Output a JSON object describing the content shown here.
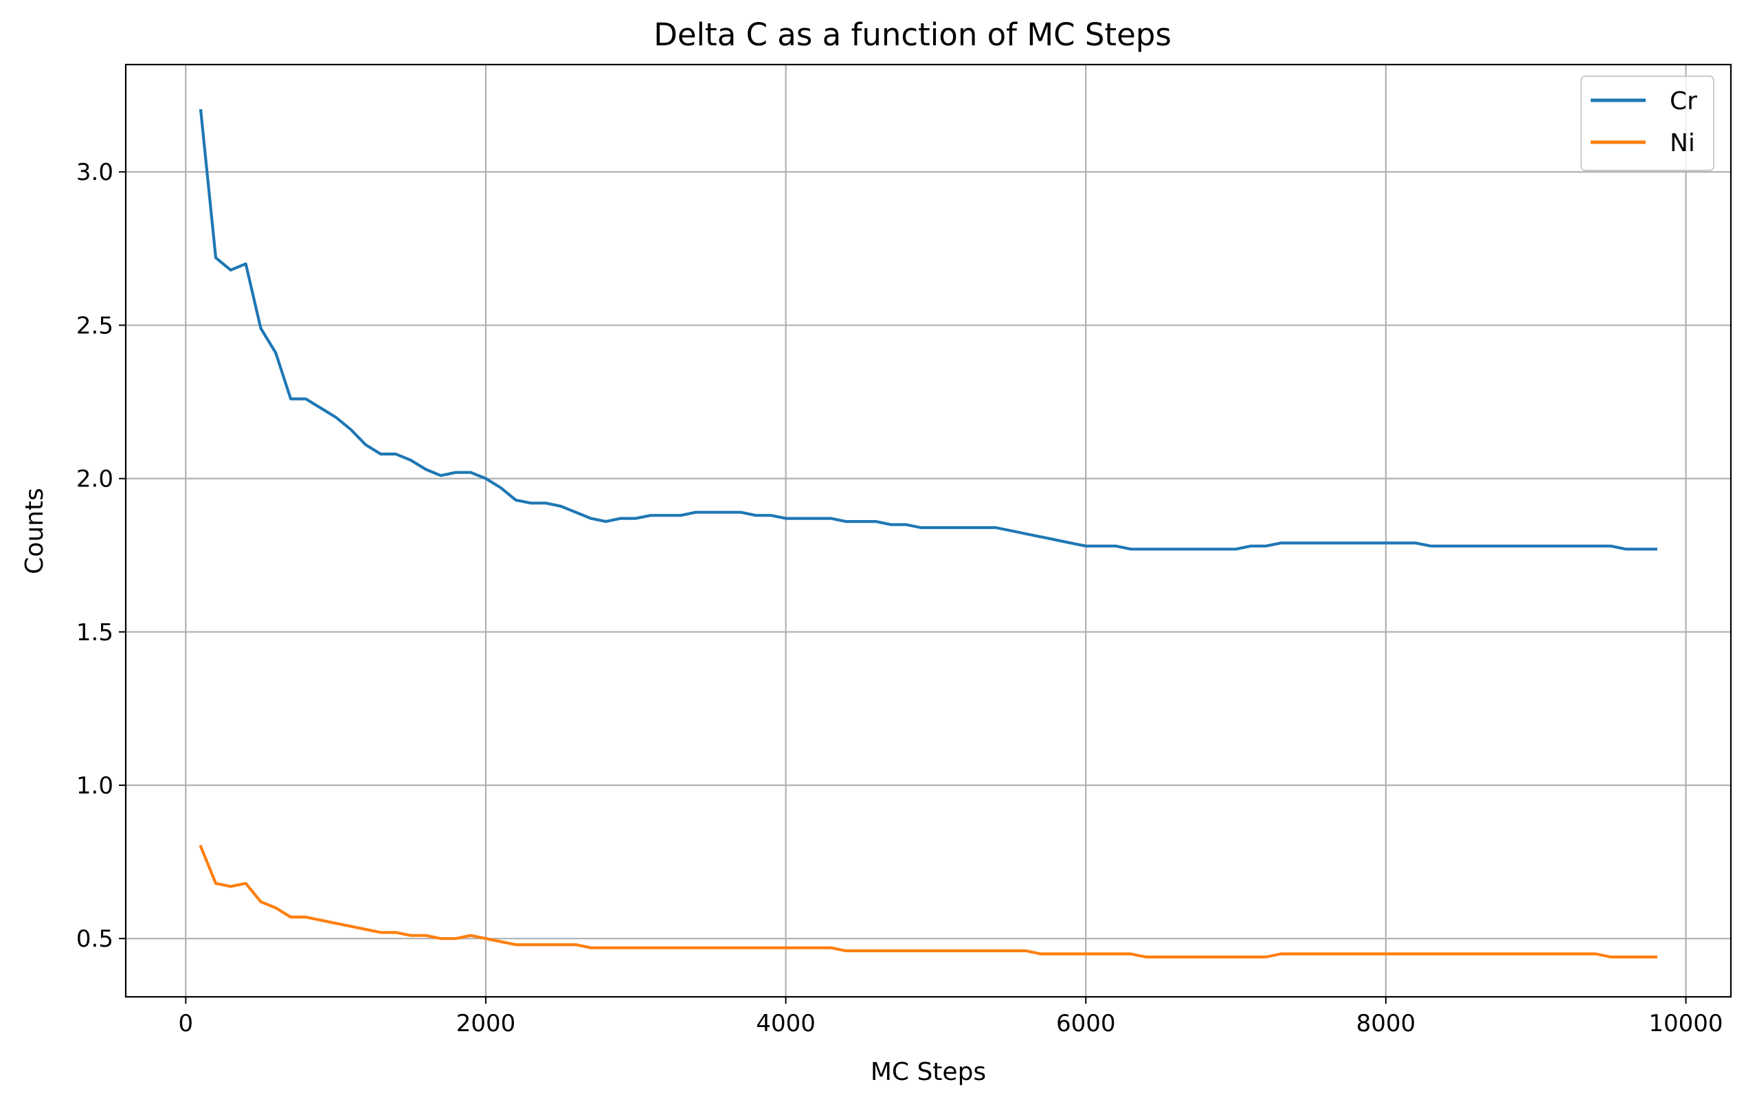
{
  "chart_data": {
    "type": "line",
    "title": "Delta C as a function of MC Steps",
    "xlabel": "MC Steps",
    "ylabel": "Counts",
    "xlim": [
      -400,
      10300
    ],
    "ylim": [
      0.31,
      3.35
    ],
    "xticks": [
      0,
      2000,
      4000,
      6000,
      8000,
      10000
    ],
    "yticks": [
      0.5,
      1.0,
      1.5,
      2.0,
      2.5,
      3.0
    ],
    "xtick_labels": [
      "0",
      "2000",
      "4000",
      "6000",
      "8000",
      "10000"
    ],
    "ytick_labels": [
      "0.5",
      "1.0",
      "1.5",
      "2.0",
      "2.5",
      "3.0"
    ],
    "grid": true,
    "legend_position": "top-right",
    "x": [
      100,
      200,
      300,
      400,
      500,
      600,
      700,
      800,
      900,
      1000,
      1100,
      1200,
      1300,
      1400,
      1500,
      1600,
      1700,
      1800,
      1900,
      2000,
      2100,
      2200,
      2300,
      2400,
      2500,
      2600,
      2700,
      2800,
      2900,
      3000,
      3100,
      3200,
      3300,
      3400,
      3500,
      3600,
      3700,
      3800,
      3900,
      4000,
      4100,
      4200,
      4300,
      4400,
      4500,
      4600,
      4700,
      4800,
      4900,
      5000,
      5100,
      5200,
      5300,
      5400,
      5500,
      5600,
      5700,
      5800,
      5900,
      6000,
      6100,
      6200,
      6300,
      6400,
      6500,
      6600,
      6700,
      6800,
      6900,
      7000,
      7100,
      7200,
      7300,
      7400,
      7500,
      7600,
      7700,
      7800,
      7900,
      8000,
      8100,
      8200,
      8300,
      8400,
      8500,
      8600,
      8700,
      8800,
      8900,
      9000,
      9100,
      9200,
      9300,
      9400,
      9500,
      9600,
      9700,
      9800
    ],
    "series": [
      {
        "name": "Cr",
        "color": "#1f77b4",
        "values": [
          3.2,
          2.72,
          2.68,
          2.7,
          2.49,
          2.41,
          2.26,
          2.26,
          2.23,
          2.2,
          2.16,
          2.11,
          2.08,
          2.08,
          2.06,
          2.03,
          2.01,
          2.02,
          2.02,
          2.0,
          1.97,
          1.93,
          1.92,
          1.92,
          1.91,
          1.89,
          1.87,
          1.86,
          1.87,
          1.87,
          1.88,
          1.88,
          1.88,
          1.89,
          1.89,
          1.89,
          1.89,
          1.88,
          1.88,
          1.87,
          1.87,
          1.87,
          1.87,
          1.86,
          1.86,
          1.86,
          1.85,
          1.85,
          1.84,
          1.84,
          1.84,
          1.84,
          1.84,
          1.84,
          1.83,
          1.82,
          1.81,
          1.8,
          1.79,
          1.78,
          1.78,
          1.78,
          1.77,
          1.77,
          1.77,
          1.77,
          1.77,
          1.77,
          1.77,
          1.77,
          1.78,
          1.78,
          1.79,
          1.79,
          1.79,
          1.79,
          1.79,
          1.79,
          1.79,
          1.79,
          1.79,
          1.79,
          1.78,
          1.78,
          1.78,
          1.78,
          1.78,
          1.78,
          1.78,
          1.78,
          1.78,
          1.78,
          1.78,
          1.78,
          1.78,
          1.77,
          1.77,
          1.77
        ]
      },
      {
        "name": "Ni",
        "color": "#ff7f0e",
        "values": [
          0.8,
          0.68,
          0.67,
          0.68,
          0.62,
          0.6,
          0.57,
          0.57,
          0.56,
          0.55,
          0.54,
          0.53,
          0.52,
          0.52,
          0.51,
          0.51,
          0.5,
          0.5,
          0.51,
          0.5,
          0.49,
          0.48,
          0.48,
          0.48,
          0.48,
          0.48,
          0.47,
          0.47,
          0.47,
          0.47,
          0.47,
          0.47,
          0.47,
          0.47,
          0.47,
          0.47,
          0.47,
          0.47,
          0.47,
          0.47,
          0.47,
          0.47,
          0.47,
          0.46,
          0.46,
          0.46,
          0.46,
          0.46,
          0.46,
          0.46,
          0.46,
          0.46,
          0.46,
          0.46,
          0.46,
          0.46,
          0.45,
          0.45,
          0.45,
          0.45,
          0.45,
          0.45,
          0.45,
          0.44,
          0.44,
          0.44,
          0.44,
          0.44,
          0.44,
          0.44,
          0.44,
          0.44,
          0.45,
          0.45,
          0.45,
          0.45,
          0.45,
          0.45,
          0.45,
          0.45,
          0.45,
          0.45,
          0.45,
          0.45,
          0.45,
          0.45,
          0.45,
          0.45,
          0.45,
          0.45,
          0.45,
          0.45,
          0.45,
          0.45,
          0.44,
          0.44,
          0.44,
          0.44
        ]
      }
    ]
  }
}
